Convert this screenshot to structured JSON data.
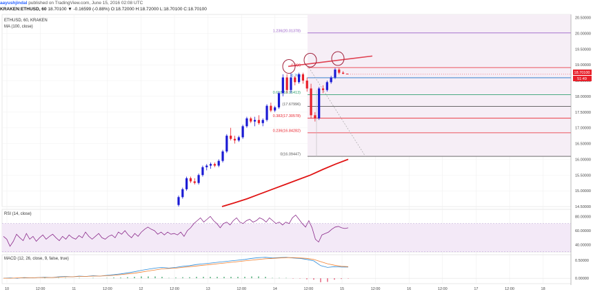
{
  "header": {
    "author": "aayushjindal",
    "published": "published on TradingView.com, June 15, 2016 02:08 UTC",
    "symbol_line": "KRAKEN:ETHUSD, 60",
    "ohlc": "18.70100 ▼ -0.16599 (-0.88%) O:18.72000 H:18.72000 L:18.70100 C:18.70100"
  },
  "legend": {
    "title": "ETHUSD, 60, KRAKEN",
    "ma": "MA (100, close)"
  },
  "price_label": {
    "value": "18.70100",
    "countdown": "51:49"
  },
  "panes": {
    "rsi_title": "RSI (14, close)",
    "macd_title": "MACD (12, 26, close, 9, false, true)"
  },
  "colors": {
    "up": "#1a1ad4",
    "down": "#e8202a",
    "ma": "#e01414",
    "trendline": "#e04050",
    "rsi": "#8a2a8a",
    "macd": "#2a8ad8",
    "signal": "#f08030",
    "fib_zone": "#f6eef6"
  },
  "chart_data": [
    {
      "type": "candlestick",
      "title": "ETHUSD, 60, KRAKEN",
      "ylim": [
        14.5,
        20.6
      ],
      "y_ticks": [
        "20.50000",
        "20.00000",
        "19.50000",
        "19.00000",
        "18.50000",
        "18.00000",
        "17.50000",
        "17.00000",
        "16.50000",
        "16.00000",
        "15.50000",
        "15.00000",
        "14.50000"
      ],
      "x_ticks": [
        "10",
        "12:00",
        "11",
        "12:00",
        "12",
        "12:00",
        "13",
        "12:00",
        "14",
        "12:00",
        "15",
        "12:00",
        "16",
        "12:00",
        "17",
        "12:00",
        "18"
      ],
      "candles": [
        {
          "o": 14.55,
          "h": 14.85,
          "l": 14.5,
          "c": 14.8
        },
        {
          "o": 14.8,
          "h": 15.1,
          "l": 14.75,
          "c": 15.05
        },
        {
          "o": 15.05,
          "h": 15.45,
          "l": 15.0,
          "c": 15.4
        },
        {
          "o": 15.4,
          "h": 15.45,
          "l": 15.25,
          "c": 15.3
        },
        {
          "o": 15.3,
          "h": 15.4,
          "l": 15.2,
          "c": 15.25
        },
        {
          "o": 15.25,
          "h": 15.55,
          "l": 15.2,
          "c": 15.5
        },
        {
          "o": 15.5,
          "h": 15.8,
          "l": 15.45,
          "c": 15.75
        },
        {
          "o": 15.75,
          "h": 15.85,
          "l": 15.65,
          "c": 15.8
        },
        {
          "o": 15.8,
          "h": 15.9,
          "l": 15.7,
          "c": 15.85
        },
        {
          "o": 15.85,
          "h": 15.9,
          "l": 15.75,
          "c": 15.8
        },
        {
          "o": 15.8,
          "h": 16.0,
          "l": 15.75,
          "c": 15.95
        },
        {
          "o": 15.95,
          "h": 16.3,
          "l": 15.9,
          "c": 16.25
        },
        {
          "o": 16.25,
          "h": 16.8,
          "l": 16.2,
          "c": 16.75
        },
        {
          "o": 16.75,
          "h": 17.0,
          "l": 16.6,
          "c": 16.65
        },
        {
          "o": 16.65,
          "h": 16.75,
          "l": 16.5,
          "c": 16.6
        },
        {
          "o": 16.6,
          "h": 16.75,
          "l": 16.55,
          "c": 16.7
        },
        {
          "o": 16.7,
          "h": 17.1,
          "l": 16.65,
          "c": 17.05
        },
        {
          "o": 17.05,
          "h": 17.35,
          "l": 17.0,
          "c": 17.3
        },
        {
          "o": 17.3,
          "h": 17.35,
          "l": 17.15,
          "c": 17.2
        },
        {
          "o": 17.2,
          "h": 17.35,
          "l": 17.05,
          "c": 17.25
        },
        {
          "o": 17.25,
          "h": 17.4,
          "l": 17.1,
          "c": 17.15
        },
        {
          "o": 17.15,
          "h": 17.3,
          "l": 17.05,
          "c": 17.25
        },
        {
          "o": 17.25,
          "h": 17.75,
          "l": 17.2,
          "c": 17.7
        },
        {
          "o": 17.7,
          "h": 17.8,
          "l": 17.5,
          "c": 17.55
        },
        {
          "o": 17.55,
          "h": 17.7,
          "l": 17.5,
          "c": 17.65
        },
        {
          "o": 17.65,
          "h": 18.15,
          "l": 17.6,
          "c": 18.1
        },
        {
          "o": 18.1,
          "h": 18.7,
          "l": 18.0,
          "c": 18.6
        },
        {
          "o": 18.6,
          "h": 18.7,
          "l": 18.1,
          "c": 18.2
        },
        {
          "o": 18.2,
          "h": 18.75,
          "l": 18.1,
          "c": 18.6
        },
        {
          "o": 18.6,
          "h": 18.65,
          "l": 18.35,
          "c": 18.45
        },
        {
          "o": 18.45,
          "h": 18.75,
          "l": 18.4,
          "c": 18.7
        },
        {
          "o": 18.7,
          "h": 18.75,
          "l": 18.4,
          "c": 18.5
        },
        {
          "o": 18.5,
          "h": 18.6,
          "l": 18.15,
          "c": 18.25
        },
        {
          "o": 18.25,
          "h": 18.4,
          "l": 17.3,
          "c": 17.4
        },
        {
          "o": 17.4,
          "h": 17.5,
          "l": 17.2,
          "c": 17.3
        },
        {
          "o": 17.3,
          "h": 18.3,
          "l": 17.25,
          "c": 18.25
        },
        {
          "o": 18.25,
          "h": 18.35,
          "l": 18.1,
          "c": 18.2
        },
        {
          "o": 18.2,
          "h": 18.5,
          "l": 18.15,
          "c": 18.45
        },
        {
          "o": 18.45,
          "h": 18.65,
          "l": 18.4,
          "c": 18.6
        },
        {
          "o": 18.6,
          "h": 18.9,
          "l": 18.55,
          "c": 18.85
        },
        {
          "o": 18.85,
          "h": 18.9,
          "l": 18.7,
          "c": 18.75
        },
        {
          "o": 18.75,
          "h": 18.8,
          "l": 18.7,
          "c": 18.72
        },
        {
          "o": 18.72,
          "h": 18.72,
          "l": 18.701,
          "c": 18.701
        }
      ],
      "ma": [
        14.5,
        14.62,
        14.75,
        14.9,
        15.05,
        15.2,
        15.35,
        15.5,
        15.68,
        15.85,
        16.0
      ],
      "fib_levels": [
        {
          "ratio": "1.236",
          "price": 20.01378,
          "label": "1.236(20.01378)",
          "color": "#9a60c8"
        },
        {
          "ratio": "0.886",
          "price": 18.913,
          "label": "0.886",
          "color": "#e8202a"
        },
        {
          "ratio": "0.764",
          "price": 18.59,
          "label": "0.764",
          "color": "#1a70c8"
        },
        {
          "ratio": "0.618",
          "price": 18.05413,
          "label": "0.618(18.05413)",
          "color": "#30a070"
        },
        {
          "ratio": "0.5",
          "price": 17.67996,
          "label": "(17.67996)",
          "color": "#555555"
        },
        {
          "ratio": "0.382",
          "price": 17.30578,
          "label": "0.382(17.30578)",
          "color": "#e8202a"
        },
        {
          "ratio": "0.236",
          "price": 16.84282,
          "label": "0.236(16.84282)",
          "color": "#e8202a"
        },
        {
          "ratio": "0",
          "price": 16.09447,
          "label": "0(16.09447)",
          "color": "#555555"
        }
      ],
      "trendline": [
        [
          18.9,
          28
        ],
        [
          19.25,
          44
        ]
      ]
    },
    {
      "type": "line",
      "title": "RSI (14, close)",
      "ylim": [
        30,
        90
      ],
      "y_ticks": [
        "80.00000",
        "60.00000",
        "40.00000"
      ],
      "band": [
        30,
        70
      ],
      "values": [
        52,
        48,
        38,
        45,
        55,
        50,
        46,
        56,
        48,
        52,
        45,
        50,
        54,
        48,
        52,
        55,
        50,
        46,
        52,
        48,
        54,
        50,
        48,
        53,
        50,
        58,
        52,
        48,
        52,
        56,
        50,
        48,
        52,
        54,
        50,
        58,
        55,
        60,
        54,
        50,
        56,
        52,
        58,
        62,
        65,
        62,
        60,
        55,
        58,
        54,
        58,
        55,
        56,
        54,
        58,
        52,
        60,
        64,
        70,
        74,
        78,
        72,
        76,
        80,
        74,
        70,
        64,
        70,
        72,
        68,
        74,
        78,
        72,
        70,
        74,
        76,
        72,
        74,
        78,
        76,
        72,
        78,
        74,
        70,
        72,
        68,
        72,
        70,
        78,
        82,
        76,
        70,
        65,
        74,
        64,
        48,
        44,
        54,
        56,
        58,
        62,
        65,
        66,
        64,
        63,
        64
      ]
    },
    {
      "type": "line",
      "title": "MACD (12, 26, close, 9, false, true)",
      "ylim": [
        -0.15,
        0.65
      ],
      "y_ticks": [
        "0.50000",
        "0.00000"
      ],
      "macd": [
        0,
        0.01,
        0,
        0.02,
        0.01,
        0.02,
        0.03,
        0.02,
        0.04,
        0.05,
        0.04,
        0.06,
        0.05,
        0.07,
        0.06,
        0.08,
        0.1,
        0.12,
        0.15,
        0.18,
        0.22,
        0.25,
        0.28,
        0.3,
        0.28,
        0.3,
        0.33,
        0.35,
        0.38,
        0.4,
        0.42,
        0.44,
        0.46,
        0.48,
        0.5,
        0.52,
        0.55,
        0.57,
        0.58,
        0.56,
        0.57,
        0.58,
        0.56,
        0.55,
        0.52,
        0.48,
        0.35,
        0.3,
        0.32,
        0.31,
        0.31
      ],
      "signal": [
        0,
        0,
        0.01,
        0.01,
        0.01,
        0.02,
        0.02,
        0.02,
        0.03,
        0.04,
        0.04,
        0.05,
        0.05,
        0.06,
        0.06,
        0.07,
        0.08,
        0.1,
        0.12,
        0.14,
        0.17,
        0.2,
        0.23,
        0.26,
        0.27,
        0.28,
        0.3,
        0.32,
        0.34,
        0.36,
        0.38,
        0.4,
        0.42,
        0.44,
        0.46,
        0.48,
        0.5,
        0.52,
        0.54,
        0.55,
        0.56,
        0.57,
        0.57,
        0.56,
        0.55,
        0.52,
        0.46,
        0.4,
        0.36,
        0.33,
        0.32
      ],
      "histogram": [
        0,
        0.01,
        -0.01,
        0.01,
        0,
        0,
        0.01,
        0,
        0.01,
        0.01,
        0,
        0.01,
        0,
        0.01,
        0,
        0.01,
        0.02,
        0.02,
        0.03,
        0.04,
        0.05,
        0.05,
        0.05,
        0.04,
        0.01,
        0.02,
        0.03,
        0.03,
        0.04,
        0.04,
        0.04,
        0.04,
        0.04,
        0.04,
        0.04,
        0.04,
        0.05,
        0.05,
        0.04,
        0.01,
        0.01,
        0.01,
        -0.01,
        -0.01,
        -0.03,
        -0.04,
        -0.11,
        -0.1,
        -0.04,
        -0.02,
        -0.01
      ]
    }
  ]
}
